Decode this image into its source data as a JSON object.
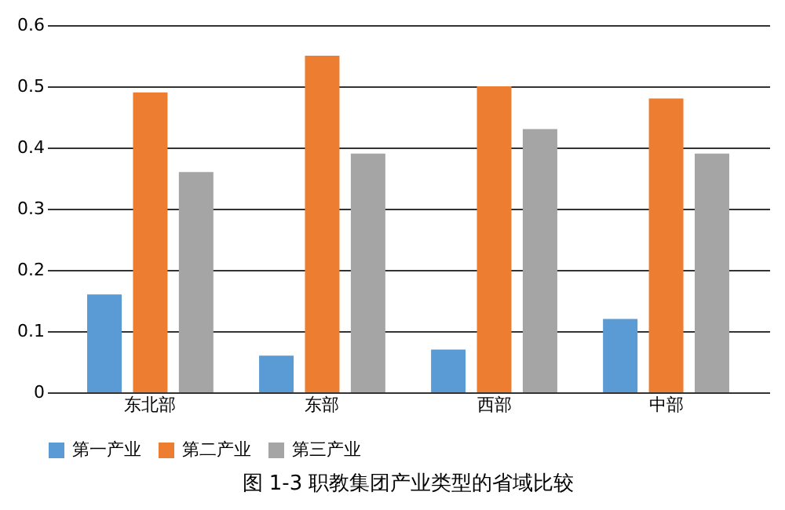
{
  "chart_data": {
    "type": "bar",
    "categories": [
      "东北部",
      "东部",
      "西部",
      "中部"
    ],
    "series": [
      {
        "name": "第一产业",
        "color": "#5b9bd5",
        "values": [
          0.16,
          0.06,
          0.07,
          0.12
        ]
      },
      {
        "name": "第二产业",
        "color": "#ed7d31",
        "values": [
          0.49,
          0.55,
          0.5,
          0.48
        ]
      },
      {
        "name": "第三产业",
        "color": "#a5a5a5",
        "values": [
          0.36,
          0.39,
          0.43,
          0.39
        ]
      }
    ],
    "ylim": [
      0,
      0.6
    ],
    "yticks": [
      0,
      0.1,
      0.2,
      0.3,
      0.4,
      0.5,
      0.6
    ],
    "grid": "y",
    "legend": "bottom",
    "annotations": [
      "图 1-3 职教集团产业类型的省域比较"
    ]
  }
}
